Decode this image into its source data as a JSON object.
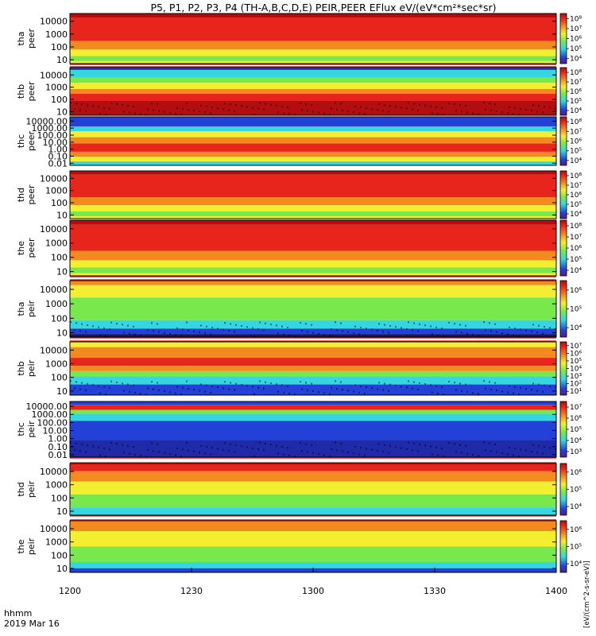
{
  "title": "P5, P1, P2, P3, P4 (TH-A,B,C,D,E) PEIR,PEER EFlux eV/(eV*cm²*sec*sr)",
  "footer": {
    "line1": "hhmm",
    "line2": "2019 Mar 16"
  },
  "colorbar_units": "[eV/(cm^2-s-sr-eV)]",
  "colors": {
    "red": "#e8251c",
    "dark_red": "#b20d10",
    "orange": "#f28a20",
    "yellow": "#f4ee30",
    "green": "#79e84c",
    "cyan": "#36d6e0",
    "blue": "#2341d6",
    "black": "#000000"
  },
  "chart_data": {
    "type": "heatmap",
    "x_ticks": [
      "1200",
      "1230",
      "1300",
      "1330",
      "1400"
    ],
    "xlim": [
      "1200",
      "1400"
    ],
    "y_scale": "log",
    "panels": [
      {
        "probe": "tha",
        "species": "peer",
        "ylim": [
          5,
          40000
        ],
        "yticks": [
          "10",
          "100",
          "1000",
          "10000"
        ],
        "cb_ticks": [
          "10⁴",
          "10⁵",
          "10⁶",
          "10⁷",
          "10⁸"
        ]
      },
      {
        "probe": "thb",
        "species": "peer",
        "ylim": [
          5,
          40000
        ],
        "yticks": [
          "10",
          "100",
          "1000",
          "10000"
        ],
        "cb_ticks": [
          "10⁴",
          "10⁵",
          "10⁶",
          "10⁷",
          "10⁸"
        ]
      },
      {
        "probe": "thc",
        "species": "peer",
        "ylim": [
          0.005,
          40000
        ],
        "yticks": [
          "0.01",
          "0.10",
          "1.00",
          "10.00",
          "100.00",
          "1000.00",
          "10000.00"
        ],
        "cb_ticks": [
          "10⁴",
          "10⁵",
          "10⁶",
          "10⁷",
          "10⁸"
        ]
      },
      {
        "probe": "thd",
        "species": "peer",
        "ylim": [
          5,
          40000
        ],
        "yticks": [
          "10",
          "100",
          "1000",
          "10000"
        ],
        "cb_ticks": [
          "10⁴",
          "10⁵",
          "10⁶",
          "10⁷",
          "10⁸"
        ]
      },
      {
        "probe": "the",
        "species": "peer",
        "ylim": [
          5,
          40000
        ],
        "yticks": [
          "10",
          "100",
          "1000",
          "10000"
        ],
        "cb_ticks": [
          "10⁴",
          "10⁵",
          "10⁶",
          "10⁷",
          "10⁸"
        ]
      },
      {
        "probe": "tha",
        "species": "peir",
        "ylim": [
          5,
          40000
        ],
        "yticks": [
          "10",
          "100",
          "1000",
          "10000"
        ],
        "cb_ticks": [
          "10⁴",
          "10⁵",
          "10⁶"
        ]
      },
      {
        "probe": "thb",
        "species": "peir",
        "ylim": [
          5,
          40000
        ],
        "yticks": [
          "10",
          "100",
          "1000",
          "10000"
        ],
        "cb_ticks": [
          "10¹",
          "10²",
          "10³",
          "10⁴",
          "10⁵",
          "10⁶",
          "10⁷"
        ]
      },
      {
        "probe": "thc",
        "species": "peir",
        "ylim": [
          0.005,
          40000
        ],
        "yticks": [
          "0.01",
          "0.10",
          "1.00",
          "10.00",
          "100.00",
          "1000.00",
          "10000.00"
        ],
        "cb_ticks": [
          "10³",
          "10⁴",
          "10⁵",
          "10⁶",
          "10⁷"
        ]
      },
      {
        "probe": "thd",
        "species": "peir",
        "ylim": [
          5,
          40000
        ],
        "yticks": [
          "10",
          "100",
          "1000",
          "10000"
        ],
        "cb_ticks": [
          "10⁴",
          "10⁵",
          "10⁶"
        ]
      },
      {
        "probe": "the",
        "species": "peir",
        "ylim": [
          5,
          40000
        ],
        "yticks": [
          "10",
          "100",
          "1000",
          "10000"
        ],
        "cb_ticks": [
          "10⁴",
          "10⁵",
          "10⁶"
        ]
      }
    ]
  }
}
